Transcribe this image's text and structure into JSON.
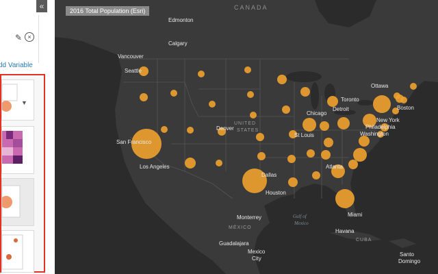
{
  "map_title": "2016 Total Population (Esri)",
  "panel": {
    "add_variable_label": "dd Variable",
    "collapse_icon": "double-chevron-left-icon",
    "collapse_glyph": "«",
    "edit_icon": "pencil-icon",
    "close_icon": "close-circle-icon",
    "dropdown_glyph": "▼"
  },
  "colors": {
    "accent_red": "#e03222",
    "bubble": "#f0a22e",
    "link_blue": "#2a7ab0"
  },
  "map_labels": {
    "countries": [
      "CANADA",
      "UNITED",
      "STATES",
      "MÉXICO",
      "CUBA"
    ],
    "water": [
      "Gulf of",
      "Mexico"
    ],
    "cities": [
      "Edmonton",
      "Calgary",
      "Vancouver",
      "Seattle",
      "San Francisco",
      "Los Angeles",
      "Denver",
      "Dallas",
      "Houston",
      "Monterrey",
      "Guadalajara",
      "Mexico",
      "City",
      "Chicago",
      "Detroit",
      "Toronto",
      "Ottawa",
      "Boston",
      "New York",
      "Philadelphia",
      "Washington",
      "St Louis",
      "Atlanta",
      "Miami",
      "Havana",
      "Santo",
      "Domingo"
    ]
  }
}
